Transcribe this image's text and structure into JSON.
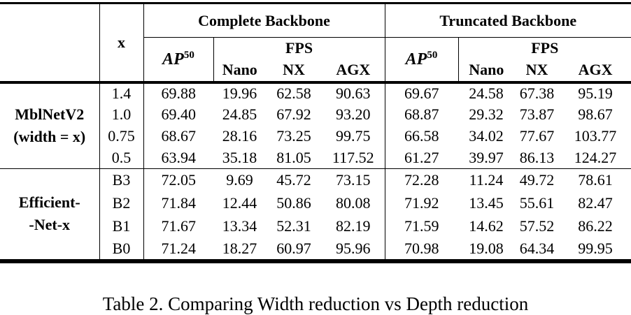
{
  "table": {
    "header": {
      "x": "x",
      "groups": [
        {
          "title": "Complete Backbone",
          "ap": "AP",
          "ap_sup": "50",
          "fps": "FPS",
          "devices": [
            "Nano",
            "NX",
            "AGX"
          ]
        },
        {
          "title": "Truncated Backbone",
          "ap": "AP",
          "ap_sup": "50",
          "fps": "FPS",
          "devices": [
            "Nano",
            "NX",
            "AGX"
          ]
        }
      ]
    },
    "sections": [
      {
        "label_lines": [
          "MblNetV2",
          "(width = x)"
        ],
        "rows": [
          [
            "1.4",
            "69.88",
            "19.96",
            "62.58",
            "90.63",
            "69.67",
            "24.58",
            "67.38",
            "95.19"
          ],
          [
            "1.0",
            "69.40",
            "24.85",
            "67.92",
            "93.20",
            "68.87",
            "29.32",
            "73.87",
            "98.67"
          ],
          [
            "0.75",
            "68.67",
            "28.16",
            "73.25",
            "99.75",
            "66.58",
            "34.02",
            "77.67",
            "103.77"
          ],
          [
            "0.5",
            "63.94",
            "35.18",
            "81.05",
            "117.52",
            "61.27",
            "39.97",
            "86.13",
            "124.27"
          ]
        ]
      },
      {
        "label_lines": [
          "Efficient-",
          "-Net-x"
        ],
        "rows": [
          [
            "B3",
            "72.05",
            "9.69",
            "45.72",
            "73.15",
            "72.28",
            "11.24",
            "49.72",
            "78.61"
          ],
          [
            "B2",
            "71.84",
            "12.44",
            "50.86",
            "80.08",
            "71.92",
            "13.45",
            "55.61",
            "82.47"
          ],
          [
            "B1",
            "71.67",
            "13.34",
            "52.31",
            "82.19",
            "71.59",
            "14.62",
            "57.52",
            "86.22"
          ],
          [
            "B0",
            "71.24",
            "18.27",
            "60.97",
            "95.96",
            "70.98",
            "19.08",
            "64.34",
            "99.95"
          ]
        ]
      }
    ]
  },
  "caption": "Table 2. Comparing Width reduction vs Depth reduction"
}
